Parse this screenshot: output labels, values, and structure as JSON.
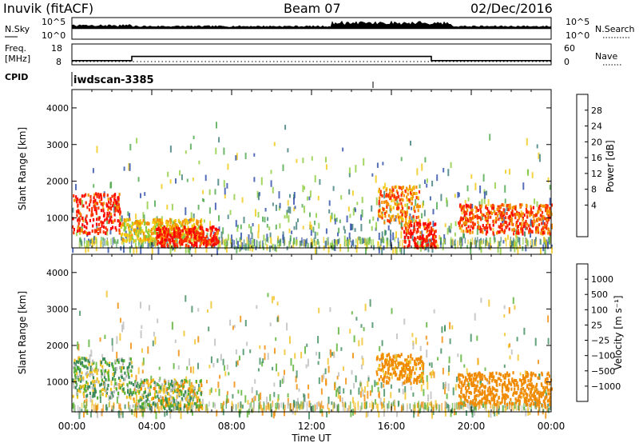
{
  "header": {
    "station": "Inuvik (fitACF)",
    "beam": "Beam 07",
    "date": "02/Dec/2016"
  },
  "noise_panel": {
    "left_label": "N.Sky",
    "right_label": "N.Search",
    "y_top_tick": "10^5",
    "y_bottom_tick": "10^0"
  },
  "freq_panel": {
    "left_label_line1": "Freq.",
    "left_label_line2": "[MHz]",
    "right_label": "Nave",
    "left_ticks": [
      "18",
      "8"
    ],
    "right_ticks": [
      "60",
      "0"
    ]
  },
  "cpid": {
    "label": "CPID",
    "program": "iwdscan",
    "id": "-3385"
  },
  "x_axis": {
    "title": "Time UT",
    "ticks": [
      "00:00",
      "04:00",
      "08:00",
      "12:00",
      "16:00",
      "20:00",
      "00:00"
    ]
  },
  "power_panel": {
    "ylabel": "Slant Range [km]",
    "y_ticks": [
      "4000",
      "3000",
      "2000",
      "1000"
    ],
    "colorbar_title": "Power [dB]",
    "colorbar_ticks": [
      "28",
      "24",
      "20",
      "16",
      "12",
      "8",
      "4"
    ],
    "colors": [
      "#2020ff",
      "#2a4aa8",
      "#3a7a78",
      "#4aa64a",
      "#8ccc3a",
      "#f0c810",
      "#f59000",
      "#ff3000",
      "#ff0000"
    ]
  },
  "velocity_panel": {
    "ylabel": "Slant Range [km]",
    "y_ticks": [
      "4000",
      "3000",
      "2000",
      "1000"
    ],
    "colorbar_title": "Velocity [m s⁻¹]",
    "colorbar_ticks": [
      "1000",
      "500",
      "100",
      "25",
      "−25",
      "−100",
      "−500",
      "−1000"
    ],
    "colors": [
      "#2244cc",
      "#2a6a8a",
      "#3a8a5a",
      "#55b030",
      "#bbbbbb",
      "#f0c020",
      "#f08a00",
      "#ff4010",
      "#ff0000"
    ]
  },
  "chart_data": {
    "type": "heatmap",
    "x_axis": "Time UT",
    "x_range_hours": [
      0,
      24
    ],
    "y_axis": "Slant Range [km]",
    "y_range_km": [
      180,
      4500
    ],
    "frequency_mhz": [
      {
        "start_hour": 0,
        "end_hour": 3,
        "value": 10
      },
      {
        "start_hour": 3,
        "end_hour": 18,
        "value": 12
      },
      {
        "start_hour": 18,
        "end_hour": 24,
        "value": 10
      }
    ],
    "power_db_regions": [
      {
        "start_hour": 0.0,
        "end_hour": 2.4,
        "range_min_km": 600,
        "range_max_km": 1700,
        "value_db": 28
      },
      {
        "start_hour": 2.4,
        "end_hour": 6.5,
        "range_min_km": 400,
        "range_max_km": 1000,
        "value_db": 20
      },
      {
        "start_hour": 4.2,
        "end_hour": 7.3,
        "range_min_km": 250,
        "range_max_km": 800,
        "value_db": 28
      },
      {
        "start_hour": 15.3,
        "end_hour": 17.4,
        "range_min_km": 900,
        "range_max_km": 1900,
        "value_db": 24
      },
      {
        "start_hour": 16.5,
        "end_hour": 18.2,
        "range_min_km": 200,
        "range_max_km": 900,
        "value_db": 28
      },
      {
        "start_hour": 19.3,
        "end_hour": 24.0,
        "range_min_km": 600,
        "range_max_km": 1400,
        "value_db": 26
      }
    ],
    "velocity_regions": [
      {
        "start_hour": 0.0,
        "end_hour": 3.0,
        "range_min_km": 600,
        "range_max_km": 1700,
        "value_ms": 50
      },
      {
        "start_hour": 3.0,
        "end_hour": 6.5,
        "range_min_km": 300,
        "range_max_km": 1100,
        "value_ms": 0
      },
      {
        "start_hour": 15.2,
        "end_hour": 17.6,
        "range_min_km": 1000,
        "range_max_km": 1800,
        "value_ms": -200
      },
      {
        "start_hour": 19.3,
        "end_hour": 24.0,
        "range_min_km": 400,
        "range_max_km": 1300,
        "value_ms": -250
      }
    ]
  }
}
